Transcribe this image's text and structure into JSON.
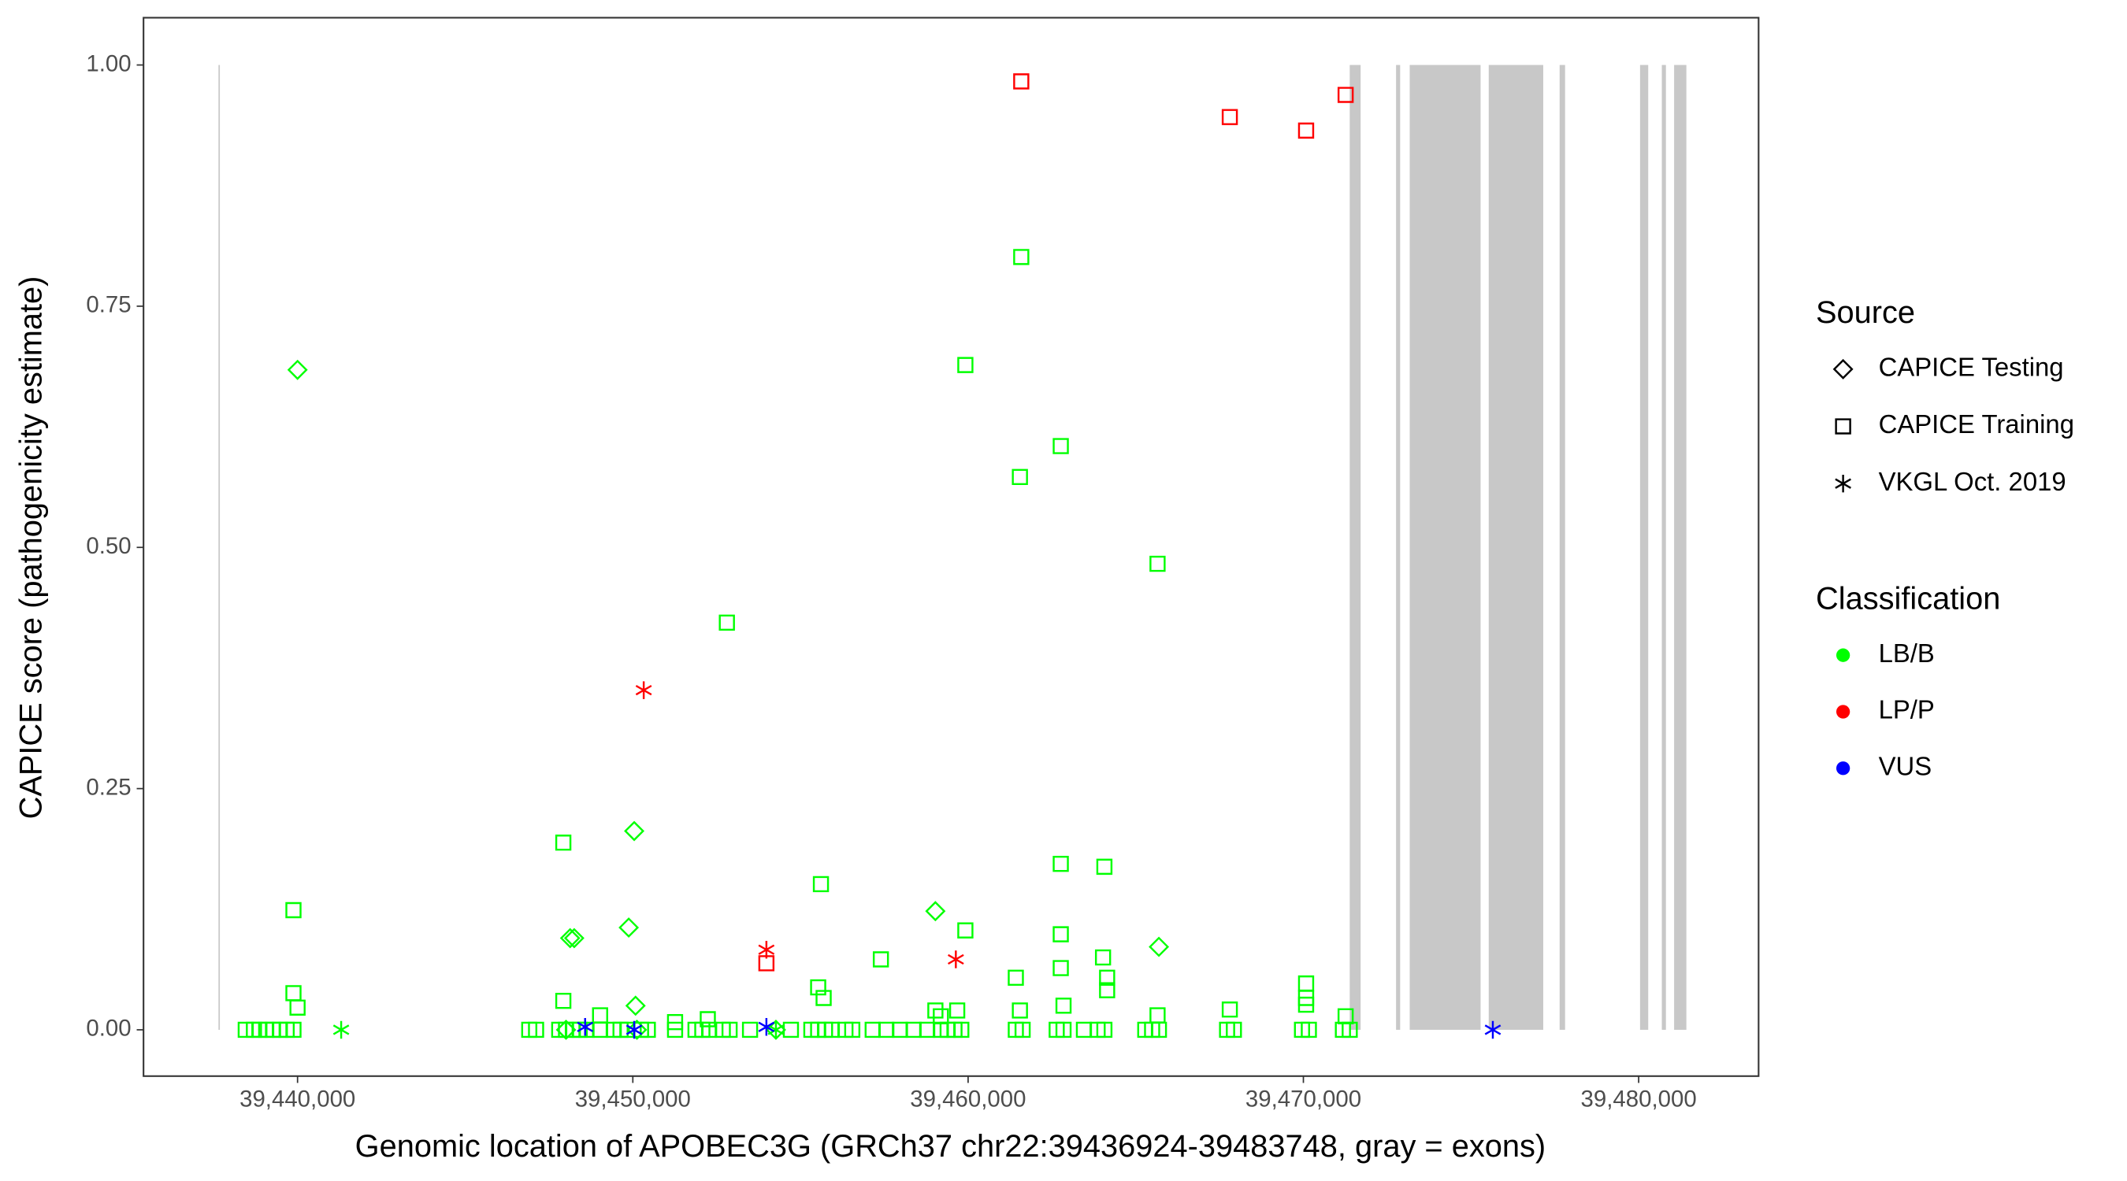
{
  "chart_data": {
    "type": "scatter",
    "x_label": "Genomic location of APOBEC3G (GRCh37 chr22:39436924-39483748, gray = exons)",
    "y_label": "CAPICE score (pathogenicity estimate)",
    "xlim": [
      39435406,
      39483577
    ],
    "ylim": [
      -0.048,
      1.049
    ],
    "xticks": [
      {
        "value": 39440000,
        "label": "39,440,000"
      },
      {
        "value": 39450000,
        "label": "39,450,000"
      },
      {
        "value": 39460000,
        "label": "39,460,000"
      },
      {
        "value": 39470000,
        "label": "39,470,000"
      },
      {
        "value": 39480000,
        "label": "39,480,000"
      }
    ],
    "yticks": [
      {
        "value": 0,
        "label": "0.00"
      },
      {
        "value": 0.25,
        "label": "0.25"
      },
      {
        "value": 0.5,
        "label": "0.50"
      },
      {
        "value": 0.75,
        "label": "0.75"
      },
      {
        "value": 1,
        "label": "1.00"
      }
    ],
    "exon_color": "#c8c8c8",
    "exons": [
      [
        39437642,
        39437683
      ],
      [
        39471382,
        39471707
      ],
      [
        39472764,
        39472886
      ],
      [
        39473171,
        39475285
      ],
      [
        39475528,
        39477154
      ],
      [
        39477642,
        39477805
      ],
      [
        39480041,
        39480285
      ],
      [
        39480691,
        39480813
      ],
      [
        39481057,
        39481423
      ]
    ],
    "legend": {
      "source_title": "Source",
      "sources": [
        {
          "name": "CAPICE Testing",
          "shape": "diamond"
        },
        {
          "name": "CAPICE Training",
          "shape": "square"
        },
        {
          "name": "VKGL Oct. 2019",
          "shape": "asterisk"
        }
      ],
      "class_title": "Classification",
      "classes": [
        {
          "name": "LB/B",
          "color": "#00ff00"
        },
        {
          "name": "LP/P",
          "color": "#ff0000"
        },
        {
          "name": "VUS",
          "color": "#0000ff"
        }
      ]
    },
    "series": [
      {
        "shape": "square",
        "color": "#00ff00",
        "x": [
          39439878,
          39439878,
          39440000,
          39447927,
          39447927,
          39452805,
          39455610,
          39457398,
          39459918,
          39459918,
          39461585,
          39461545,
          39461423,
          39462764,
          39462764,
          39462764,
          39462764,
          39464065,
          39464024,
          39465650,
          39467805,
          39470081,
          39471260,
          39449024,
          39451260,
          39452236,
          39455528,
          39455691,
          39459024,
          39459187,
          39459675,
          39461545,
          39462846,
          39464146,
          39464146,
          39465650,
          39470081,
          39470081,
          39438455,
          39438699,
          39438862,
          39439065,
          39439268,
          39439472,
          39439675,
          39439878,
          39446911,
          39447114,
          39447805,
          39448008,
          39448211,
          39448415,
          39448618,
          39449024,
          39449431,
          39449634,
          39449837,
          39450244,
          39450447,
          39451260,
          39451870,
          39452073,
          39452276,
          39452683,
          39452886,
          39453496,
          39454715,
          39455325,
          39455528,
          39455732,
          39455935,
          39456341,
          39456545,
          39457154,
          39457561,
          39457967,
          39458374,
          39458780,
          39459187,
          39459390,
          39459593,
          39459797,
          39461423,
          39461626,
          39462642,
          39462846,
          39463455,
          39463862,
          39464065,
          39465284,
          39465488,
          39465691,
          39467724,
          39467927,
          39469959,
          39470163,
          39471179,
          39471382
        ],
        "values": [
          0.124,
          0.038,
          0.023,
          0.194,
          0.03,
          0.422,
          0.151,
          0.073,
          0.689,
          0.103,
          0.801,
          0.573,
          0.054,
          0.605,
          0.172,
          0.099,
          0.064,
          0.169,
          0.075,
          0.483,
          0.021,
          0.048,
          0.014,
          0.015,
          0.008,
          0.011,
          0.044,
          0.033,
          0.02,
          0.014,
          0.02,
          0.02,
          0.025,
          0.041,
          0.054,
          0.015,
          0.033,
          0.026,
          0,
          0,
          0,
          0,
          0,
          0,
          0,
          0,
          0,
          0,
          0,
          0,
          0,
          0,
          0,
          0,
          0,
          0,
          0,
          0,
          0,
          0,
          0,
          0,
          0,
          0,
          0,
          0,
          0,
          0,
          0,
          0,
          0,
          0,
          0,
          0,
          0,
          0,
          0,
          0,
          0,
          0,
          0,
          0,
          0,
          0,
          0,
          0,
          0,
          0,
          0,
          0,
          0,
          0,
          0,
          0,
          0,
          0,
          0,
          0
        ]
      },
      {
        "shape": "square",
        "color": "#ff0000",
        "x": [
          39461585,
          39467805,
          39470081,
          39471260,
          39453984
        ],
        "values": [
          0.983,
          0.946,
          0.932,
          0.969,
          0.069
        ]
      },
      {
        "shape": "diamond",
        "color": "#00ff00",
        "x": [
          39440000,
          39450041,
          39449878,
          39448130,
          39448252,
          39459024,
          39465690,
          39450081,
          39448008,
          39450122,
          39454268
        ],
        "values": [
          0.684,
          0.206,
          0.106,
          0.095,
          0.095,
          0.123,
          0.086,
          0.025,
          0,
          0,
          0
        ]
      },
      {
        "shape": "asterisk",
        "color": "#00ff00",
        "x": [
          39441301,
          39454268
        ],
        "values": [
          0,
          0
        ]
      },
      {
        "shape": "asterisk",
        "color": "#ff0000",
        "x": [
          39450325,
          39453984,
          39459634
        ],
        "values": [
          0.352,
          0.083,
          0.073
        ]
      },
      {
        "shape": "asterisk",
        "color": "#0000ff",
        "x": [
          39448577,
          39450041,
          39453984,
          39475650
        ],
        "values": [
          0.003,
          0,
          0.003,
          0
        ]
      }
    ]
  }
}
